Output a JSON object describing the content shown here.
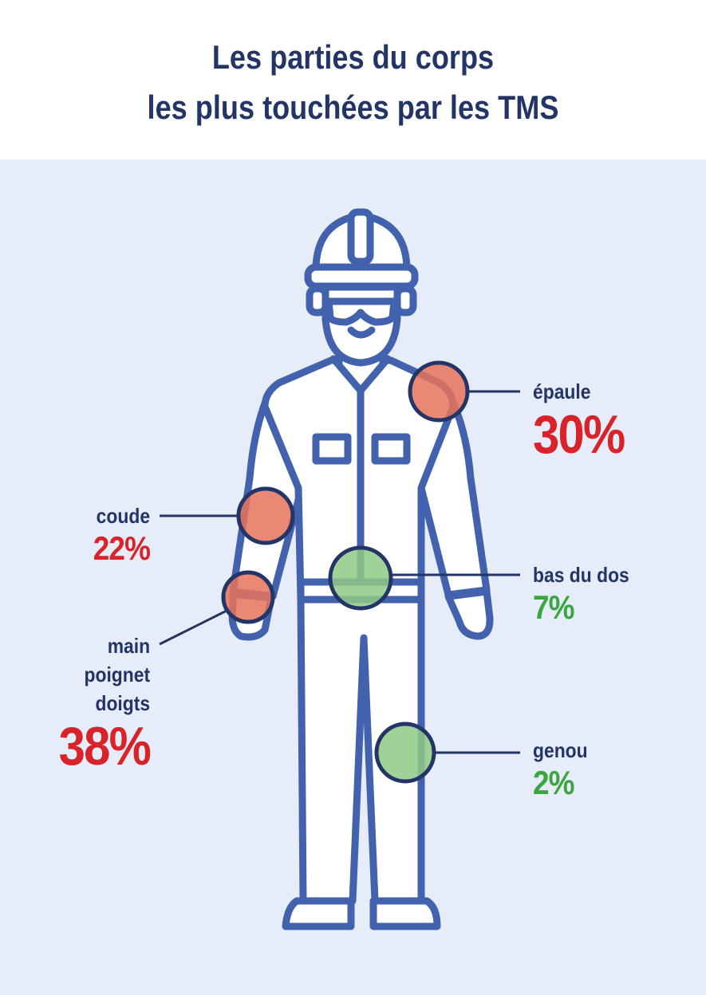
{
  "title": {
    "line1": "Les parties du corps",
    "line2": "les plus touchées par les TMS"
  },
  "colors": {
    "title": "#233467",
    "background_panel": "#e6ecf8",
    "figure_stroke": "#4262ad",
    "high": "#d9232a",
    "low": "#3ba640",
    "circle_high_fill": "#e8735a",
    "circle_low_fill": "#8fca85",
    "leader_line": "#233467"
  },
  "body_parts": [
    {
      "id": "epaule",
      "name": "épaule",
      "value": "30%",
      "level": "high"
    },
    {
      "id": "coude",
      "name": "coude",
      "value": "22%",
      "level": "high"
    },
    {
      "id": "bas-du-dos",
      "name": "bas du dos",
      "value": "7%",
      "level": "low"
    },
    {
      "id": "main",
      "name_lines": [
        "main",
        "poignet",
        "doigts"
      ],
      "value": "38%",
      "level": "high"
    },
    {
      "id": "genou",
      "name": "genou",
      "value": "2%",
      "level": "low"
    }
  ]
}
